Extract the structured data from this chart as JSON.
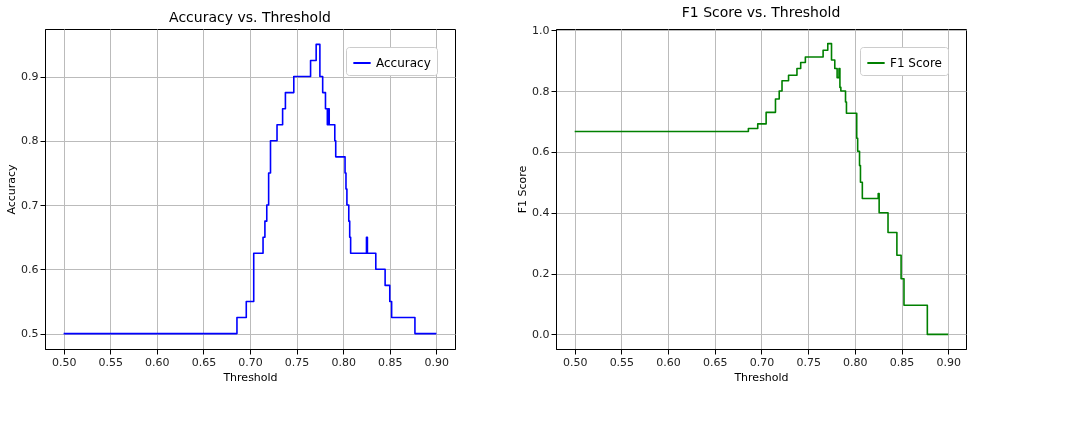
{
  "chart_data": [
    {
      "type": "step",
      "title": "Accuracy vs. Threshold",
      "xlabel": "Threshold",
      "ylabel": "Accuracy",
      "x": [
        0.5,
        0.686,
        0.696,
        0.704,
        0.714,
        0.716,
        0.718,
        0.72,
        0.722,
        0.729,
        0.735,
        0.738,
        0.747,
        0.765,
        0.771,
        0.775,
        0.778,
        0.781,
        0.783,
        0.784,
        0.785,
        0.791,
        0.792,
        0.802,
        0.803,
        0.804,
        0.806,
        0.807,
        0.808,
        0.825,
        0.826,
        0.835,
        0.845,
        0.85,
        0.852,
        0.877,
        0.9
      ],
      "series": [
        {
          "name": "Accuracy",
          "color": "#0000ff",
          "values": [
            0.5,
            0.525,
            0.55,
            0.625,
            0.65,
            0.675,
            0.7,
            0.75,
            0.8,
            0.825,
            0.85,
            0.875,
            0.9,
            0.925,
            0.95,
            0.9,
            0.875,
            0.85,
            0.825,
            0.85,
            0.825,
            0.8,
            0.775,
            0.75,
            0.725,
            0.7,
            0.675,
            0.65,
            0.625,
            0.65,
            0.625,
            0.6,
            0.575,
            0.55,
            0.525,
            0.5,
            0.5
          ]
        }
      ],
      "xlim": [
        0.48,
        0.92
      ],
      "ylim": [
        0.476,
        0.974
      ],
      "xticks": [
        {
          "value": 0.5,
          "label": "0.50"
        },
        {
          "value": 0.55,
          "label": "0.55"
        },
        {
          "value": 0.6,
          "label": "0.60"
        },
        {
          "value": 0.65,
          "label": "0.65"
        },
        {
          "value": 0.7,
          "label": "0.70"
        },
        {
          "value": 0.75,
          "label": "0.75"
        },
        {
          "value": 0.8,
          "label": "0.80"
        },
        {
          "value": 0.85,
          "label": "0.85"
        },
        {
          "value": 0.9,
          "label": "0.90"
        }
      ],
      "yticks": [
        0.5,
        0.6,
        0.7,
        0.8,
        0.9
      ],
      "grid": true,
      "legend": "top right"
    },
    {
      "type": "step",
      "title": "F1 Score vs. Threshold",
      "xlabel": "Threshold",
      "ylabel": "F1 Score",
      "x": [
        0.5,
        0.686,
        0.696,
        0.705,
        0.715,
        0.719,
        0.722,
        0.729,
        0.738,
        0.742,
        0.747,
        0.766,
        0.771,
        0.775,
        0.7785,
        0.781,
        0.783,
        0.784,
        0.785,
        0.79,
        0.791,
        0.802,
        0.803,
        0.805,
        0.806,
        0.808,
        0.825,
        0.826,
        0.8355,
        0.845,
        0.8495,
        0.8526,
        0.8776,
        0.9
      ],
      "series": [
        {
          "name": "F1 Score",
          "color": "#008000",
          "values": [
            0.667,
            0.677,
            0.692,
            0.73,
            0.774,
            0.8,
            0.834,
            0.852,
            0.874,
            0.894,
            0.912,
            0.934,
            0.956,
            0.902,
            0.874,
            0.844,
            0.874,
            0.812,
            0.8,
            0.764,
            0.727,
            0.645,
            0.602,
            0.555,
            0.5,
            0.447,
            0.463,
            0.4,
            0.335,
            0.26,
            0.183,
            0.096,
            0.0,
            0.0
          ]
        }
      ],
      "xlim": [
        0.48,
        0.919
      ],
      "ylim": [
        -0.048,
        1.004
      ],
      "xticks": [
        {
          "value": 0.5,
          "label": "0.50"
        },
        {
          "value": 0.55,
          "label": "0.55"
        },
        {
          "value": 0.6,
          "label": "0.60"
        },
        {
          "value": 0.65,
          "label": "0.65"
        },
        {
          "value": 0.7,
          "label": "0.70"
        },
        {
          "value": 0.75,
          "label": "0.75"
        },
        {
          "value": 0.8,
          "label": "0.80"
        },
        {
          "value": 0.85,
          "label": "0.85"
        },
        {
          "value": 0.9,
          "label": "0.90"
        }
      ],
      "yticks": [
        {
          "value": 0.0,
          "label": "0.0"
        },
        {
          "value": 0.2,
          "label": "0.2"
        },
        {
          "value": 0.4,
          "label": "0.4"
        },
        {
          "value": 0.6,
          "label": "0.6"
        },
        {
          "value": 0.8,
          "label": "0.8"
        },
        {
          "value": 1.0,
          "label": "1.0"
        }
      ],
      "grid": true,
      "legend": "top right"
    }
  ]
}
